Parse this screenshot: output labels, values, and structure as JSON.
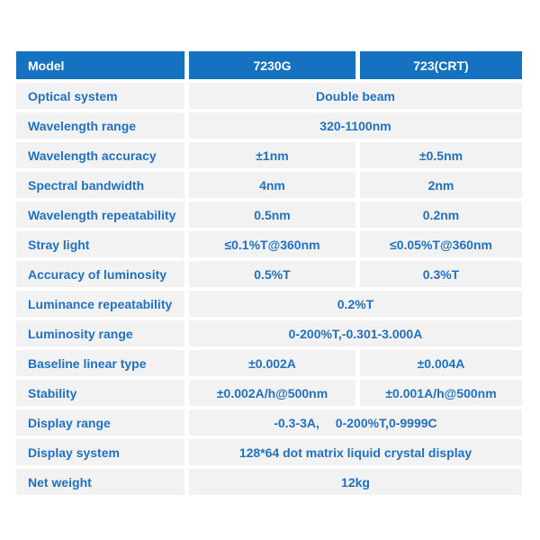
{
  "colors": {
    "header_bg": "#1472c0",
    "header_text": "#ffffff",
    "cell_bg": "#f2f2f2",
    "text_blue": "#2171c2",
    "page_bg": "#ffffff"
  },
  "table": {
    "header": {
      "model_label": "Model",
      "col_7230g": "7230G",
      "col_723crt": "723(CRT)"
    },
    "rows": [
      {
        "label": "Optical system",
        "values": [
          "Double beam"
        ]
      },
      {
        "label": "Wavelength range",
        "values": [
          "320-1100nm"
        ]
      },
      {
        "label": "Wavelength accuracy",
        "values": [
          "±1nm",
          "±0.5nm"
        ]
      },
      {
        "label": "Spectral bandwidth",
        "values": [
          "4nm",
          "2nm"
        ]
      },
      {
        "label": "Wavelength repeatability",
        "values": [
          "0.5nm",
          "0.2nm"
        ]
      },
      {
        "label": "Stray light",
        "values": [
          "≤0.1%T@360nm",
          "≤0.05%T@360nm"
        ]
      },
      {
        "label": "Accuracy of luminosity",
        "values": [
          "0.5%T",
          "0.3%T"
        ]
      },
      {
        "label": "Luminance repeatability",
        "values": [
          "0.2%T"
        ]
      },
      {
        "label": "Luminosity range",
        "values": [
          "0-200%T,-0.301-3.000A"
        ]
      },
      {
        "label": "Baseline linear type",
        "values": [
          "±0.002A",
          "±0.004A"
        ]
      },
      {
        "label": "Stability",
        "values": [
          "±0.002A/h@500nm",
          "±0.001A/h@500nm"
        ]
      },
      {
        "label": "Display range",
        "values": [
          "-0.3-3A,  0-200%T,0-9999C"
        ]
      },
      {
        "label": "Display system",
        "values": [
          "128*64 dot matrix liquid crystal display"
        ]
      },
      {
        "label": "Net weight",
        "values": [
          "12kg"
        ]
      }
    ]
  }
}
